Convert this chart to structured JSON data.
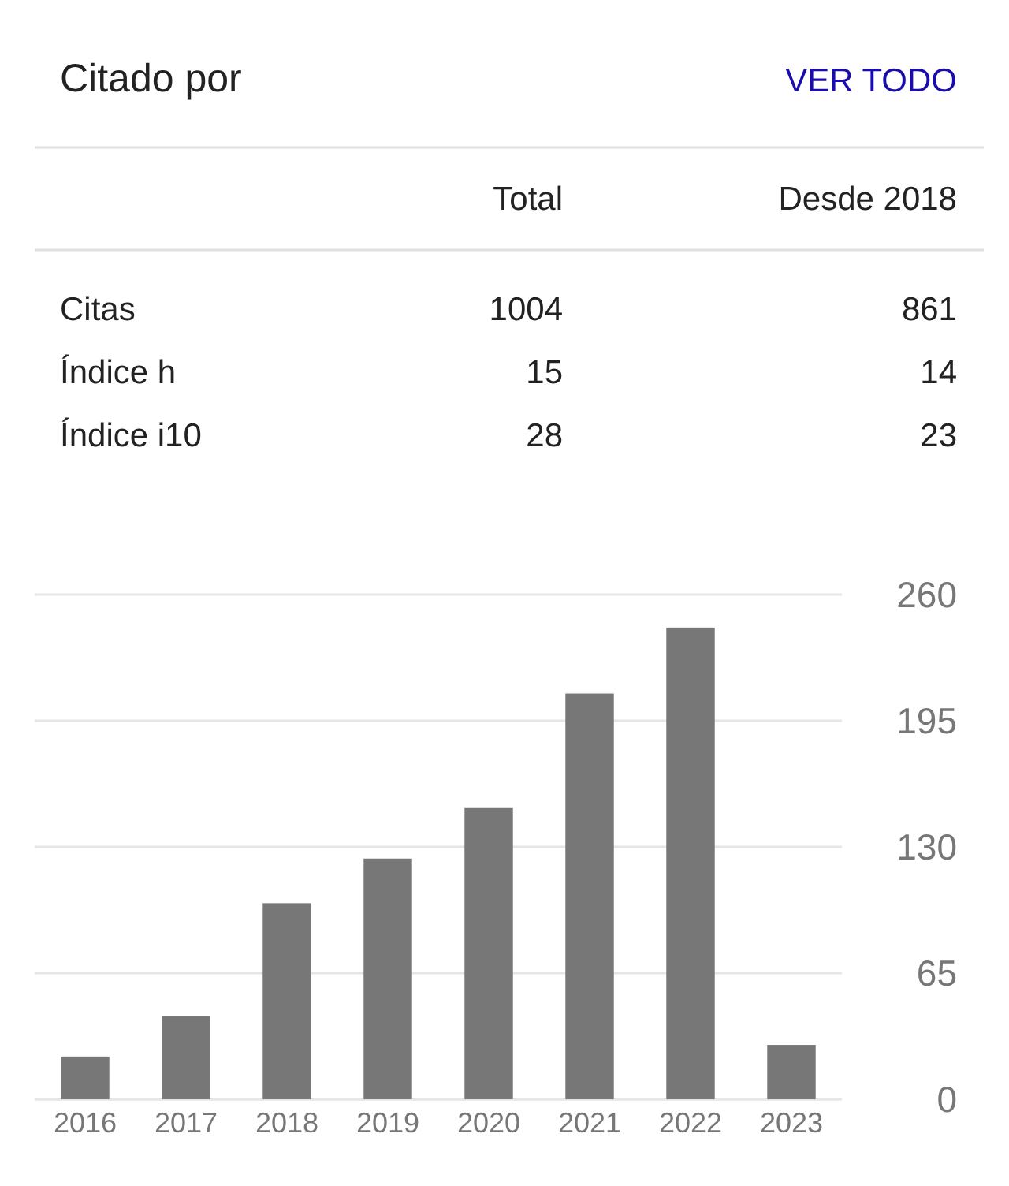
{
  "chart_data": [
    {
      "type": "other",
      "title": "Citado por",
      "annotations": [
        "VER TODO",
        "Total",
        "Desde 2018",
        "Citas",
        "1004",
        "861",
        "Índice h",
        "15",
        "14",
        "Índice i10",
        "28",
        "23"
      ]
    },
    {
      "type": "bar",
      "categories": [
        "2016",
        "2017",
        "2018",
        "2019",
        "2020",
        "2021",
        "2022",
        "2023"
      ],
      "values": [
        22,
        43,
        101,
        124,
        150,
        209,
        243,
        28
      ],
      "color": "#777777",
      "ylim": [
        0,
        260
      ],
      "yticks": [
        0,
        65,
        130,
        195,
        260
      ],
      "grid": "y"
    }
  ]
}
